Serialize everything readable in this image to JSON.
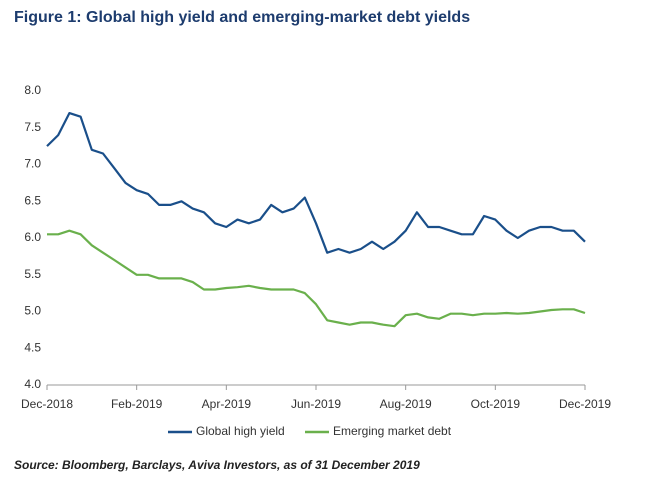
{
  "chart_data": {
    "type": "line",
    "title": "Figure 1: Global high yield and emerging-market debt yields",
    "source": "Source: Bloomberg, Barclays, Aviva Investors, as of 31 December 2019",
    "categories": [
      "Dec-2018",
      null,
      null,
      null,
      null,
      null,
      null,
      null,
      "Feb-2019",
      null,
      null,
      null,
      null,
      null,
      null,
      null,
      "Apr-2019",
      null,
      null,
      null,
      null,
      null,
      null,
      null,
      "Jun-2019",
      null,
      null,
      null,
      null,
      null,
      null,
      null,
      "Aug-2019",
      null,
      null,
      null,
      null,
      null,
      null,
      null,
      "Oct-2019",
      null,
      null,
      null,
      null,
      null,
      null,
      null,
      "Dec-2019"
    ],
    "series": [
      {
        "name": "Global high yield",
        "color": "#1a4f8a",
        "values": [
          7.25,
          7.4,
          7.7,
          7.65,
          7.2,
          7.15,
          6.95,
          6.75,
          6.65,
          6.6,
          6.45,
          6.45,
          6.5,
          6.4,
          6.35,
          6.2,
          6.15,
          6.25,
          6.2,
          6.25,
          6.45,
          6.35,
          6.4,
          6.55,
          6.2,
          5.8,
          5.85,
          5.8,
          5.85,
          5.95,
          5.85,
          5.95,
          6.1,
          6.35,
          6.15,
          6.15,
          6.1,
          6.05,
          6.05,
          6.3,
          6.25,
          6.1,
          6.0,
          6.1,
          6.15,
          6.15,
          6.1,
          6.1,
          5.95
        ]
      },
      {
        "name": "Emerging market debt",
        "color": "#6ab04c",
        "values": [
          6.05,
          6.05,
          6.1,
          6.05,
          5.9,
          5.8,
          5.7,
          5.6,
          5.5,
          5.5,
          5.45,
          5.45,
          5.45,
          5.4,
          5.3,
          5.3,
          5.32,
          5.33,
          5.35,
          5.32,
          5.3,
          5.3,
          5.3,
          5.25,
          5.1,
          4.88,
          4.85,
          4.82,
          4.85,
          4.85,
          4.82,
          4.8,
          4.95,
          4.97,
          4.92,
          4.9,
          4.97,
          4.97,
          4.95,
          4.97,
          4.97,
          4.98,
          4.97,
          4.98,
          5.0,
          5.02,
          5.03,
          5.03,
          4.98
        ]
      }
    ],
    "ylim": [
      4.0,
      8.0
    ],
    "yticks": [
      {
        "value": 4.0,
        "label": "4.0"
      },
      {
        "value": 4.5,
        "label": "4.5"
      },
      {
        "value": 5.0,
        "label": "5.0"
      },
      {
        "value": 5.5,
        "label": "5.5"
      },
      {
        "value": 6.0,
        "label": "6.0"
      },
      {
        "value": 6.5,
        "label": "6.5"
      },
      {
        "value": 7.0,
        "label": "7.0"
      },
      {
        "value": 7.5,
        "label": "7.5"
      },
      {
        "value": 8.0,
        "label": "8.0"
      }
    ],
    "grid": false
  }
}
